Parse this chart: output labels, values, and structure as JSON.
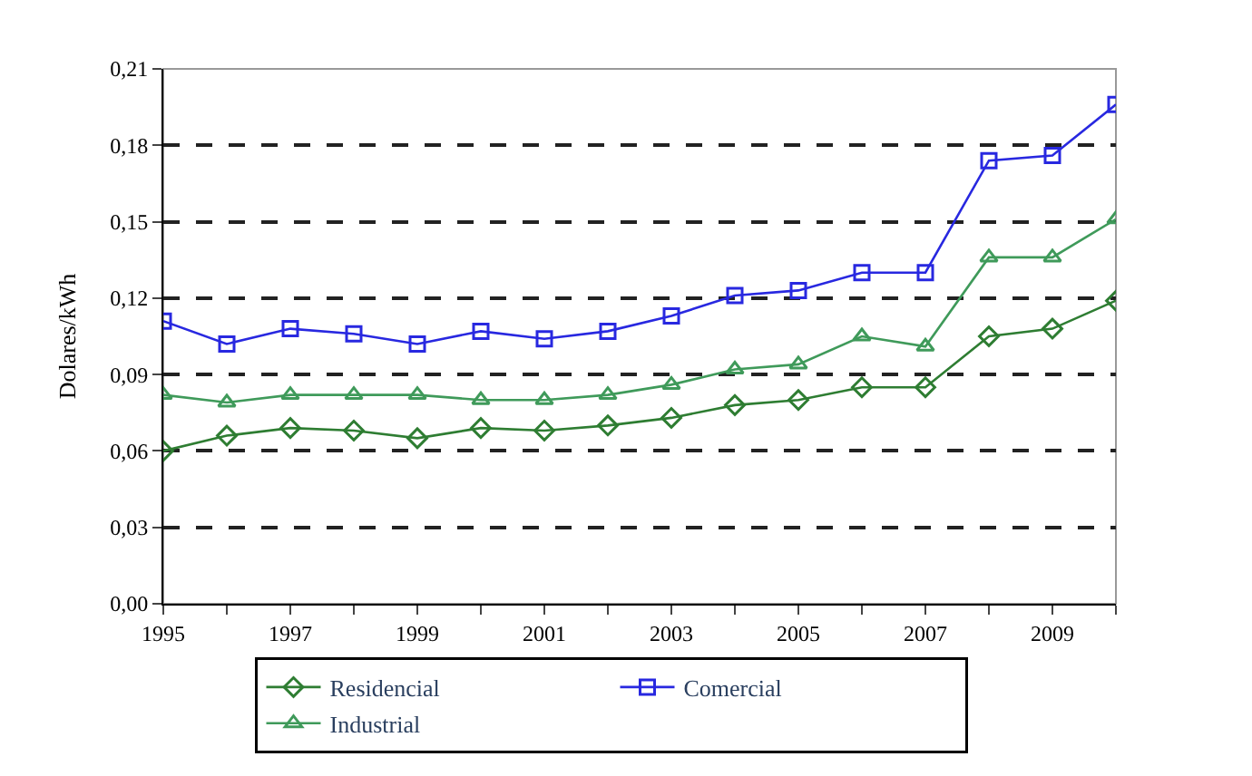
{
  "chart_data": {
    "type": "line",
    "ylabel": "Dolares/kWh",
    "x": [
      1995,
      1996,
      1997,
      1998,
      1999,
      2000,
      2001,
      2002,
      2003,
      2004,
      2005,
      2006,
      2007,
      2008,
      2009,
      2010
    ],
    "xlim": [
      1995,
      2010
    ],
    "xticks": [
      {
        "value": 1995,
        "label": "1995"
      },
      {
        "value": 1996,
        "label": null
      },
      {
        "value": 1997,
        "label": "1997"
      },
      {
        "value": 1998,
        "label": null
      },
      {
        "value": 1999,
        "label": "1999"
      },
      {
        "value": 2000,
        "label": null
      },
      {
        "value": 2001,
        "label": "2001"
      },
      {
        "value": 2002,
        "label": null
      },
      {
        "value": 2003,
        "label": "2003"
      },
      {
        "value": 2004,
        "label": null
      },
      {
        "value": 2005,
        "label": "2005"
      },
      {
        "value": 2006,
        "label": null
      },
      {
        "value": 2007,
        "label": "2007"
      },
      {
        "value": 2008,
        "label": null
      },
      {
        "value": 2009,
        "label": "2009"
      },
      {
        "value": 2010,
        "label": null
      }
    ],
    "ylim": [
      0,
      0.21
    ],
    "yticks": [
      {
        "value": 0,
        "label": "0,00"
      },
      {
        "value": 0.03,
        "label": "0,03"
      },
      {
        "value": 0.06,
        "label": "0,06"
      },
      {
        "value": 0.09,
        "label": "0,09"
      },
      {
        "value": 0.12,
        "label": "0,12"
      },
      {
        "value": 0.15,
        "label": "0,15"
      },
      {
        "value": 0.18,
        "label": "0,18"
      },
      {
        "value": 0.21,
        "label": "0,21"
      }
    ],
    "grid": "y",
    "legend": "bottom",
    "series": [
      {
        "name": "Residencial",
        "color": "#2e7d32",
        "marker": "diamond",
        "values": [
          0.06,
          0.066,
          0.069,
          0.068,
          0.065,
          0.069,
          0.068,
          0.07,
          0.073,
          0.078,
          0.08,
          0.085,
          0.085,
          0.105,
          0.108,
          0.119
        ]
      },
      {
        "name": "Comercial",
        "color": "#2828e0",
        "marker": "square",
        "values": [
          0.111,
          0.102,
          0.108,
          0.106,
          0.102,
          0.107,
          0.104,
          0.107,
          0.113,
          0.121,
          0.123,
          0.13,
          0.13,
          0.174,
          0.176,
          0.196
        ]
      },
      {
        "name": "Industrial",
        "color": "#3f9a5a",
        "marker": "triangle",
        "values": [
          0.082,
          0.079,
          0.082,
          0.082,
          0.082,
          0.08,
          0.08,
          0.082,
          0.086,
          0.092,
          0.094,
          0.105,
          0.101,
          0.136,
          0.136,
          0.151
        ]
      }
    ]
  }
}
